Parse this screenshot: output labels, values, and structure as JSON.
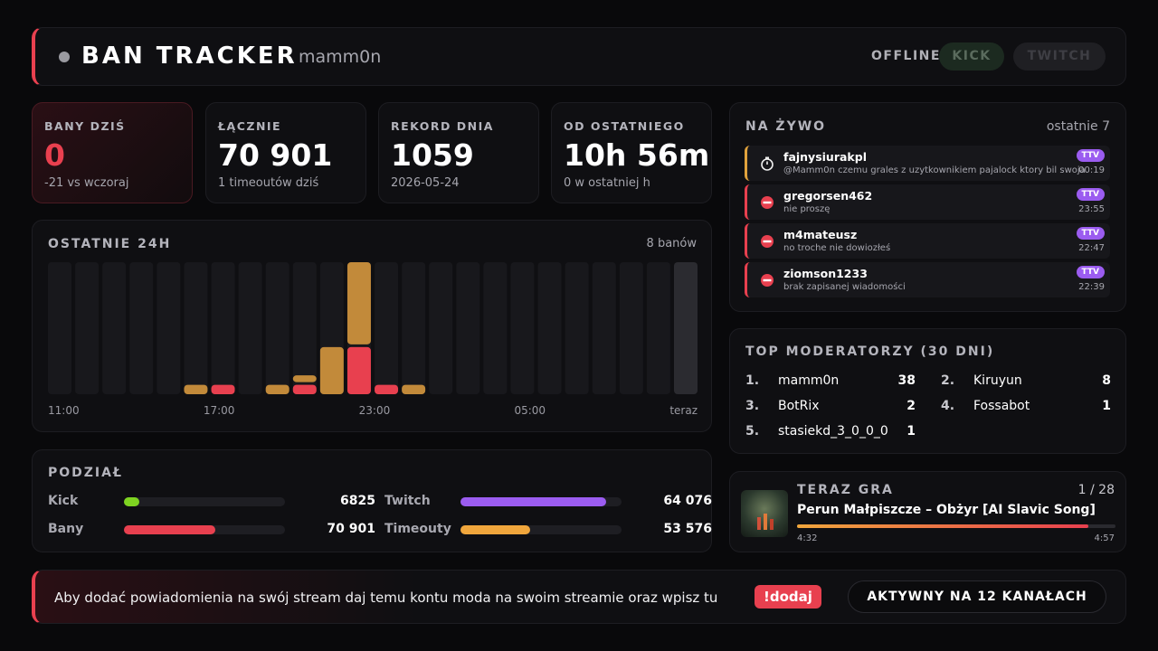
{
  "header": {
    "title": "BAN TRACKER",
    "channel": "mamm0n",
    "status": "OFFLINE",
    "buttons": [
      "KICK",
      "TWITCH"
    ]
  },
  "stats": [
    {
      "label": "BANY DZIŚ",
      "value": "0",
      "sub": "-21 vs wczoraj"
    },
    {
      "label": "ŁĄCZNIE",
      "value": "70 901",
      "sub": "1 timeoutów dziś"
    },
    {
      "label": "REKORD DNIA",
      "value": "1059",
      "sub": "2026-05-24"
    },
    {
      "label": "OD OSTATNIEGO",
      "value": "10h 56m",
      "sub": "0 w ostatniej h"
    }
  ],
  "chart_data": {
    "type": "bar",
    "stacked": true,
    "title": "OSTATNIE 24H",
    "subtitle": "8 banów",
    "x_labels": [
      "11:00",
      "17:00",
      "23:00",
      "05:00",
      "teraz"
    ],
    "ylim": [
      0,
      14
    ],
    "series": [
      {
        "color": "#e8404f",
        "values": [
          0,
          0,
          0,
          0,
          0,
          0,
          1,
          0,
          0,
          1,
          0,
          5,
          1,
          0,
          0,
          0,
          0,
          0,
          0,
          0,
          0,
          0,
          0,
          0
        ]
      },
      {
        "color": "#c28a3a",
        "values": [
          0,
          0,
          0,
          0,
          0,
          1,
          0,
          0,
          1,
          1,
          5,
          9,
          0,
          1,
          0,
          0,
          0,
          0,
          0,
          0,
          0,
          0,
          0,
          0
        ]
      }
    ]
  },
  "split": {
    "title": "PODZIAŁ",
    "rows": [
      [
        {
          "name": "Kick",
          "color": "#7ed321",
          "value": 6825
        },
        {
          "name": "Twitch",
          "color": "#9b5cf0",
          "value": {
            "value": 64076,
            "label": "64 076"
          }
        }
      ],
      [
        {
          "name": "Bany",
          "color": "#e8404f",
          "value": {
            "value": 70901,
            "label": "70 901"
          }
        },
        {
          "name": "Timeouty",
          "color": "#f0a63c",
          "value": {
            "value": 53576,
            "label": "53 576"
          }
        }
      ]
    ]
  },
  "live": {
    "title": "NA ŻYWO",
    "subtitle": "ostatnie 7",
    "items": [
      {
        "kind": "timeout",
        "name": "fajnysiurakpl",
        "message": "@Mamm0n czemu grales z uzytkownikiem pajalock ktory bil swoja",
        "badge": "TTV",
        "time": "00:19"
      },
      {
        "kind": "ban",
        "name": "gregorsen462",
        "message": "nie proszę",
        "badge": "TTV",
        "time": "23:55"
      },
      {
        "kind": "ban",
        "name": "m4mateusz",
        "message": "no troche nie dowiozłeś",
        "badge": "TTV",
        "time": "22:47"
      },
      {
        "kind": "ban",
        "name": "ziomson1233",
        "message": "brak zapisanej wiadomości",
        "badge": "TTV",
        "time": "22:39"
      }
    ]
  },
  "moderators": {
    "title": "TOP MODERATORZY (30 DNI)",
    "items": [
      {
        "rank": "1.",
        "name": "mamm0n",
        "count": 38
      },
      {
        "rank": "2.",
        "name": "Kiruyun",
        "count": 8
      },
      {
        "rank": "3.",
        "name": "BotRix",
        "count": 2
      },
      {
        "rank": "4.",
        "name": "Fossabot",
        "count": 1
      },
      {
        "rank": "5.",
        "name": "stasiekd_3_0_0_0",
        "count": 1
      }
    ]
  },
  "now_playing": {
    "title": "TERAZ GRA",
    "position": "1 / 28",
    "song": "Perun Małpiszcze – Obżyr [AI Slavic Song]",
    "elapsed": "4:32",
    "duration": "4:57"
  },
  "footer": {
    "message": "Aby dodać powiadomienia na swój stream daj temu kontu moda na swoim streamie oraz wpisz tu",
    "command": "!dodaj",
    "active": "AKTYWNY NA 12 KANAŁACH"
  }
}
